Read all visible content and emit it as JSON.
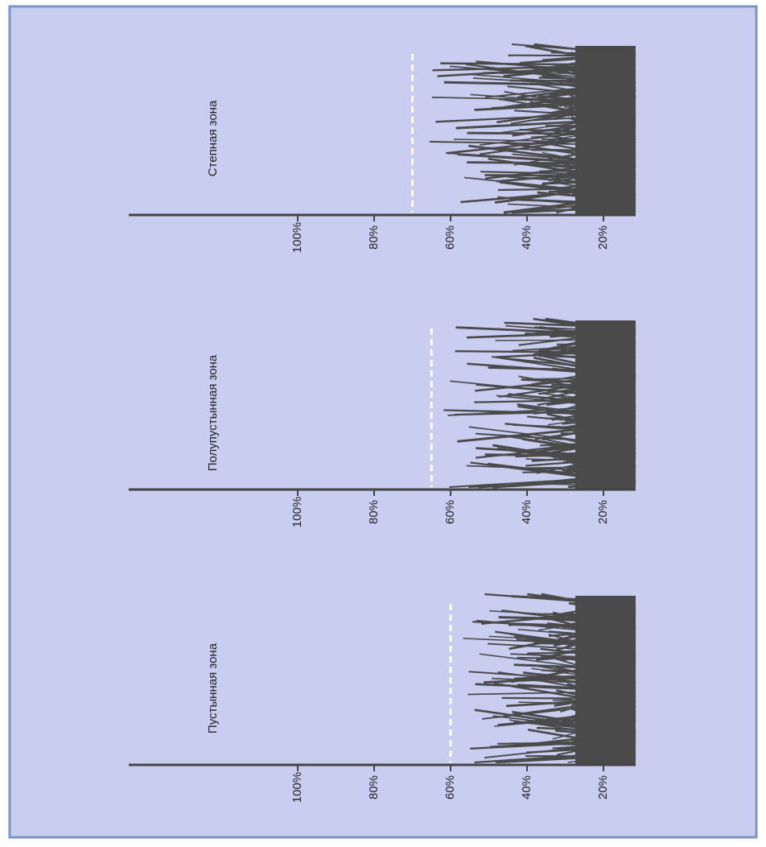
{
  "chart_data": [
    {
      "type": "line",
      "title": "Степная зона",
      "ylim": [
        0,
        100
      ],
      "yticks": [
        {
          "value": 100,
          "label": "100%"
        },
        {
          "value": 80,
          "label": "80%"
        },
        {
          "value": 60,
          "label": "60%"
        },
        {
          "value": 40,
          "label": "40%"
        },
        {
          "value": 20,
          "label": "20%"
        }
      ],
      "reference_line": 70,
      "color": "#4a4a4a"
    },
    {
      "type": "line",
      "title": "Полупустынная зона",
      "ylim": [
        0,
        100
      ],
      "yticks": [
        {
          "value": 100,
          "label": "100%"
        },
        {
          "value": 80,
          "label": "80%"
        },
        {
          "value": 60,
          "label": "60%"
        },
        {
          "value": 40,
          "label": "40%"
        },
        {
          "value": 20,
          "label": "20%"
        }
      ],
      "reference_line": 65,
      "color": "#4a4a4a"
    },
    {
      "type": "line",
      "title": "Пустынная зона",
      "ylim": [
        0,
        100
      ],
      "yticks": [
        {
          "value": 100,
          "label": "100%"
        },
        {
          "value": 80,
          "label": "80%"
        },
        {
          "value": 60,
          "label": "60%"
        },
        {
          "value": 40,
          "label": "40%"
        },
        {
          "value": 20,
          "label": "20%"
        }
      ],
      "reference_line": 60,
      "color": "#4a4a4a"
    }
  ]
}
